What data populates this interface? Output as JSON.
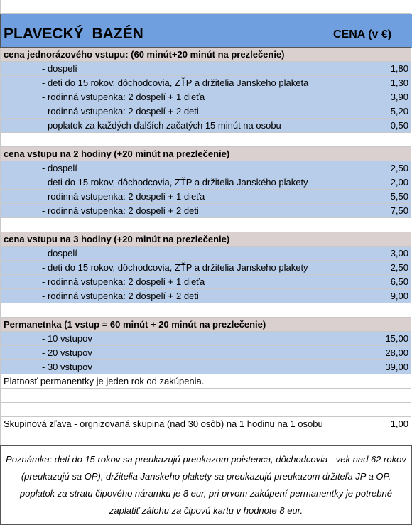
{
  "header": {
    "title": "PLAVECKÝ  BAZÉN",
    "price_label": "CENA (v €)"
  },
  "sections": [
    {
      "title": "cena jednorázového vstupu: (60 minút+20 minút na prezlečenie)",
      "items": [
        {
          "label": "- dospelí",
          "price": "1,80"
        },
        {
          "label": "- deti do 15 rokov, dôchodcovia, ZŤP a držitelia Janskeho plaketa",
          "price": "1,30"
        },
        {
          "label": "- rodinná vstupenka: 2 dospelí + 1 dieťa",
          "price": "3,90"
        },
        {
          "label": "- rodinná vstupenka: 2 dospelí + 2 deti",
          "price": "5,20"
        },
        {
          "label": "- poplatok za každých ďalších začatých 15 minút na osobu",
          "price": "0,50"
        }
      ]
    },
    {
      "title": "cena vstupu na 2 hodiny (+20 minút na prezlečenie)",
      "items": [
        {
          "label": "- dospelí",
          "price": "2,50"
        },
        {
          "label": "- deti do 15 rokov, dôchodcovia, ZŤP a držitelia Janského plakety",
          "price": "2,00"
        },
        {
          "label": "- rodinná vstupenka: 2 dospelí + 1 dieťa",
          "price": "5,50"
        },
        {
          "label": "- rodinná vstupenka: 2 dospelí + 2 deti",
          "price": "7,50"
        }
      ]
    },
    {
      "title": "cena vstupu na 3 hodiny (+20 minút na prezlečenie)",
      "items": [
        {
          "label": "- dospelí",
          "price": "3,00"
        },
        {
          "label": "- deti do 15 rokov, dôchodcovia, ZŤP a držitelia Janskeho plakety",
          "price": "2,50"
        },
        {
          "label": "- rodinná vstupenka: 2 dospelí + 1 dieťa",
          "price": "6,50"
        },
        {
          "label": "- rodinná vstupenka: 2 dospelí + 2 deti",
          "price": "9,00"
        }
      ]
    },
    {
      "title": "Permanetnka (1 vstup = 60 minút + 20 minút na prezlečenie)",
      "items": [
        {
          "label": "- 10 vstupov",
          "price": "15,00"
        },
        {
          "label": "- 20 vstupov",
          "price": "28,00"
        },
        {
          "label": "- 30 vstupov",
          "price": "39,00"
        }
      ]
    }
  ],
  "validity": "Platnosť permanentky je jeden rok od zakúpenia.",
  "group": {
    "label": "Skupinová zľava - orgnizovaná skupina (nad 30 osôb) na 1 hodinu na 1 osobu",
    "price": "1,00"
  },
  "note": "Poznámka: deti do 15 rokov sa preukazujú preukazom poistenca,  dôchodcovia - vek nad 62 rokov (preukazujú sa OP),  držitelia Janskeho plakety sa preukazujú preukazom držiteľa JP a OP, poplatok za stratu čipového náramku je 8 eur, pri prvom zakúpení permanentky je potrebné zaplatiť zálohu za čipovú kartu v hodnote 8 eur."
}
